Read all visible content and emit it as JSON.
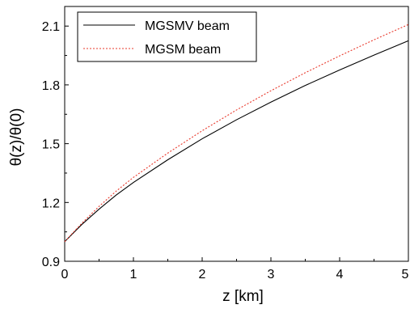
{
  "chart_data": {
    "type": "line",
    "xlabel": "z [km]",
    "ylabel": "θ(z)/θ(0)",
    "xlim": [
      0,
      5
    ],
    "ylim": [
      0.9,
      2.2
    ],
    "xticks": [
      "0",
      "1",
      "2",
      "3",
      "4",
      "5"
    ],
    "yticks": [
      "0.9",
      "1.2",
      "1.5",
      "1.8",
      "2.1"
    ],
    "grid": false,
    "legend_position": "top-left",
    "x": [
      0,
      0.25,
      0.5,
      0.75,
      1,
      1.5,
      2,
      2.5,
      3,
      3.5,
      4,
      4.5,
      5
    ],
    "series": [
      {
        "name": "MGSMV beam",
        "color": "#000000",
        "style": "solid",
        "values": [
          1.0,
          1.088,
          1.166,
          1.238,
          1.302,
          1.418,
          1.525,
          1.622,
          1.712,
          1.797,
          1.876,
          1.952,
          2.025
        ]
      },
      {
        "name": "MGSM beam",
        "color": "#e8382b",
        "style": "dotted",
        "values": [
          1.0,
          1.094,
          1.18,
          1.258,
          1.328,
          1.452,
          1.566,
          1.672,
          1.77,
          1.862,
          1.948,
          2.03,
          2.108
        ]
      }
    ]
  }
}
